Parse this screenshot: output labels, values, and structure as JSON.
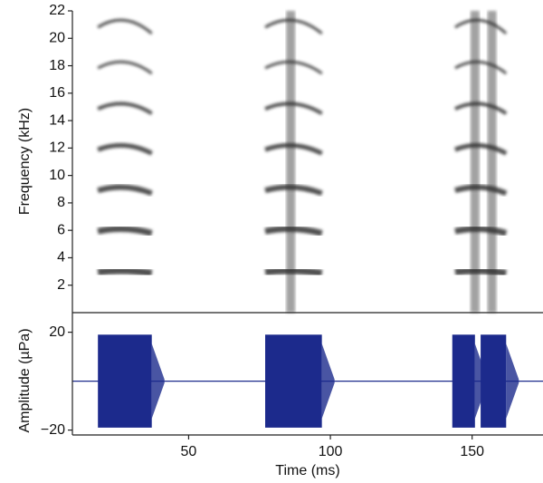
{
  "chart_data": [
    {
      "type": "spectrogram",
      "ylabel": "Frequency (kHz)",
      "xlim": [
        9,
        175
      ],
      "ylim": [
        0,
        22
      ],
      "yticks": [
        2,
        4,
        6,
        8,
        10,
        12,
        14,
        16,
        18,
        20,
        22
      ],
      "events": [
        [
          18,
          37
        ],
        [
          77,
          97
        ],
        [
          144,
          162
        ]
      ],
      "harmonics": [
        3,
        6,
        9,
        12,
        15,
        18,
        21
      ],
      "broadband": [
        86,
        151,
        157
      ],
      "color": "#333333"
    },
    {
      "type": "waveform",
      "ylabel": "Amplitude (µPa)",
      "xlabel": "Time (ms)",
      "xlim": [
        9,
        175
      ],
      "ylim": [
        -22,
        28
      ],
      "xticks": [
        50,
        100,
        150
      ],
      "yticks": [
        20,
        {
          "value": -20,
          "label": "−20"
        }
      ],
      "segments": [
        [
          18,
          37
        ],
        [
          77,
          97
        ],
        [
          143,
          151
        ],
        [
          153,
          162
        ]
      ],
      "amplitude": 19,
      "color": "#1c2a8c"
    }
  ]
}
